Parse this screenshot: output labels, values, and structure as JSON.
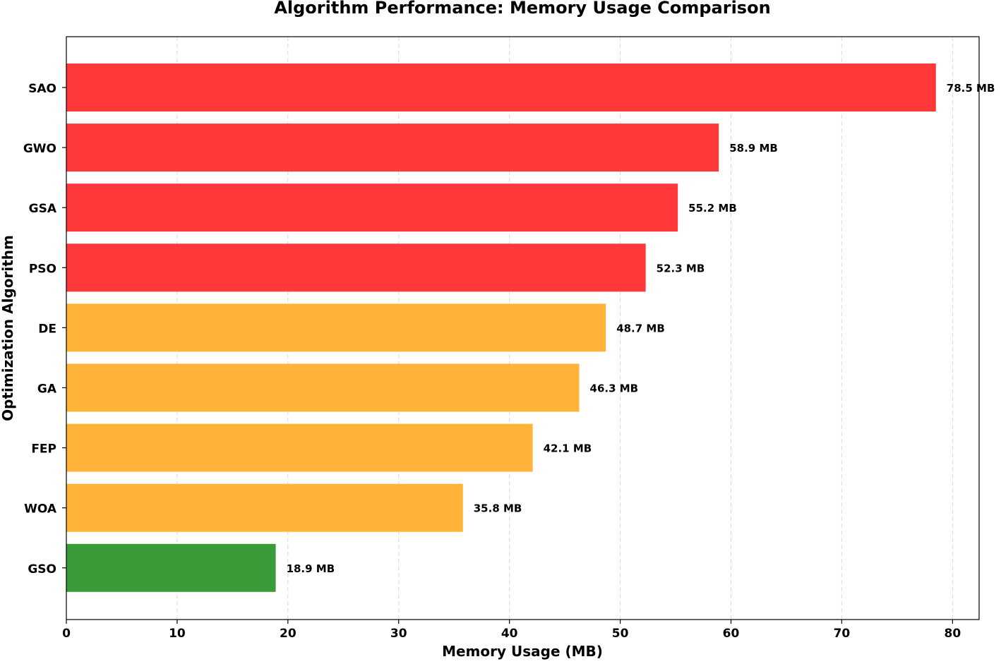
{
  "chart_data": {
    "type": "bar",
    "orientation": "horizontal",
    "title": "Algorithm Performance: Memory Usage Comparison",
    "xlabel": "Memory Usage (MB)",
    "ylabel": "Optimization Algorithm",
    "xlim": [
      0,
      82.4
    ],
    "xticks": [
      0,
      10,
      20,
      30,
      40,
      50,
      60,
      70,
      80
    ],
    "grid": "vertical dashed",
    "categories": [
      "SAO",
      "GWO",
      "GSA",
      "PSO",
      "DE",
      "GA",
      "FEP",
      "WOA",
      "GSO"
    ],
    "values": [
      78.5,
      58.9,
      55.2,
      52.3,
      48.7,
      46.3,
      42.1,
      35.8,
      18.9
    ],
    "value_labels": [
      "78.5 MB",
      "58.9 MB",
      "55.2 MB",
      "52.3 MB",
      "48.7 MB",
      "46.3 MB",
      "42.1 MB",
      "35.8 MB",
      "18.9 MB"
    ],
    "bar_colors": [
      "#ff3333",
      "#ff3333",
      "#ff3333",
      "#ff3333",
      "#ffb233",
      "#ffb233",
      "#ffb233",
      "#ffb233",
      "#339933"
    ]
  }
}
